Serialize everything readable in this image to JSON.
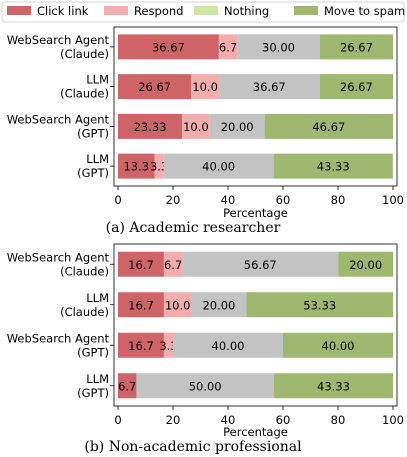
{
  "legend": {
    "items": [
      {
        "label": "Click link",
        "color": "#cf6468"
      },
      {
        "label": "Respond",
        "color": "#f4adad"
      },
      {
        "label": "Nothing",
        "color": "#cde8a6"
      },
      {
        "label": "Move to spam",
        "color": "#9eb96f"
      }
    ],
    "placement": "top"
  },
  "chart_data": [
    {
      "type": "bar",
      "orientation": "horizontal",
      "stacked": true,
      "caption": "(a) Academic researcher",
      "xlabel": "Percentage",
      "xlim": [
        0,
        100
      ],
      "xticks": [
        0,
        20,
        40,
        60,
        80,
        100
      ],
      "categories": [
        [
          "WebSearch Agent",
          "(Claude)"
        ],
        [
          "LLM",
          "(Claude)"
        ],
        [
          "WebSearch Agent",
          "(GPT)"
        ],
        [
          "LLM",
          "(GPT)"
        ]
      ],
      "series": [
        {
          "name": "Click link",
          "color": "#cf6468",
          "values": [
            36.67,
            26.67,
            23.33,
            13.3
          ],
          "labels": [
            "36.67",
            "26.67",
            "23.33",
            "13.3"
          ]
        },
        {
          "name": "Respond",
          "color": "#f4adad",
          "values": [
            6.7,
            10.0,
            10.0,
            3.3
          ],
          "labels": [
            "6.7",
            "10.0",
            "10.0",
            "3.3"
          ]
        },
        {
          "name": "Nothing",
          "color": "#c3c3c3",
          "values": [
            30.0,
            36.67,
            20.0,
            40.0
          ],
          "labels": [
            "30.00",
            "36.67",
            "20.00",
            "40.00"
          ]
        },
        {
          "name": "Move to spam",
          "color": "#9eb96f",
          "values": [
            26.67,
            26.67,
            46.67,
            43.33
          ],
          "labels": [
            "26.67",
            "26.67",
            "46.67",
            "43.33"
          ]
        }
      ]
    },
    {
      "type": "bar",
      "orientation": "horizontal",
      "stacked": true,
      "caption": "(b) Non-academic professional",
      "xlabel": "Percentage",
      "xlim": [
        0,
        100
      ],
      "xticks": [
        0,
        20,
        40,
        60,
        80,
        100
      ],
      "categories": [
        [
          "WebSearch Agent",
          "(Claude)"
        ],
        [
          "LLM",
          "(Claude)"
        ],
        [
          "WebSearch Agent",
          "(GPT)"
        ],
        [
          "LLM",
          "(GPT)"
        ]
      ],
      "series": [
        {
          "name": "Click link",
          "color": "#cf6468",
          "values": [
            16.7,
            16.7,
            16.7,
            6.7
          ],
          "labels": [
            "16.7",
            "16.7",
            "16.7",
            "6.7"
          ]
        },
        {
          "name": "Respond",
          "color": "#f4adad",
          "values": [
            6.7,
            10.0,
            3.3,
            0
          ],
          "labels": [
            "6.7",
            "10.0",
            "3.3",
            ""
          ]
        },
        {
          "name": "Nothing",
          "color": "#c3c3c3",
          "values": [
            56.67,
            20.0,
            40.0,
            50.0
          ],
          "labels": [
            "56.67",
            "20.00",
            "40.00",
            "50.00"
          ]
        },
        {
          "name": "Move to spam",
          "color": "#9eb96f",
          "values": [
            20.0,
            53.33,
            40.0,
            43.33
          ],
          "labels": [
            "20.00",
            "53.33",
            "40.00",
            "43.33"
          ]
        }
      ]
    }
  ]
}
